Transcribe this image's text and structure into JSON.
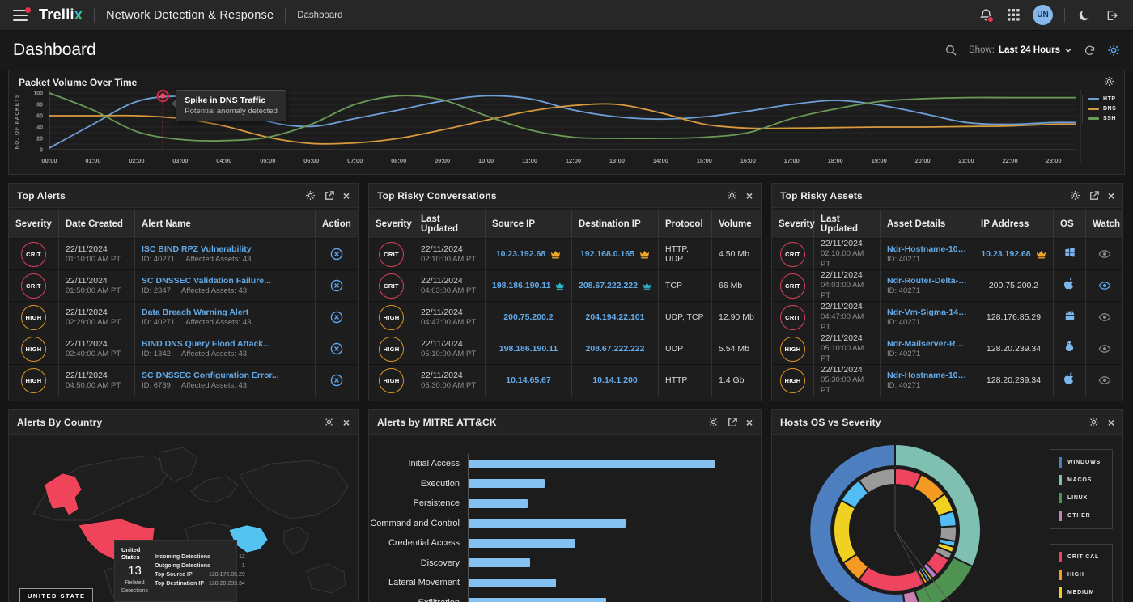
{
  "topbar": {
    "logo_main": "Trelli",
    "logo_x": "x",
    "product": "Network Detection & Response",
    "breadcrumb": "Dashboard",
    "avatar": "UN"
  },
  "header": {
    "title": "Dashboard",
    "show_label": "Show:",
    "show_value": "Last 24 Hours"
  },
  "colors": {
    "crit": "#d8405c",
    "high": "#d89427",
    "link": "#63aae8",
    "bar": "#85c1f0",
    "crown_orange": "#eda62a",
    "crown_teal": "#2fb6c9",
    "watch_active": "#5ba7f0",
    "watch_idle": "#8a8a8a",
    "os_icon": "#7db6ec"
  },
  "chart_data": [
    {
      "type": "line",
      "title": "Packet Volume Over Time",
      "xlabel": "",
      "ylabel": "NO. OF PACKETS",
      "ylim": [
        0,
        100
      ],
      "yticks": [
        0,
        20,
        40,
        60,
        80,
        100
      ],
      "grid": true,
      "legend_position": "right",
      "x": [
        "00:00",
        "01:00",
        "02:00",
        "03:00",
        "04:00",
        "05:00",
        "06:00",
        "07:00",
        "08:00",
        "09:00",
        "10:00",
        "11:00",
        "12:00",
        "13:00",
        "14:00",
        "15:00",
        "16:00",
        "17:00",
        "18:00",
        "19:00",
        "20:00",
        "21:00",
        "22:00",
        "23:00"
      ],
      "series": [
        {
          "name": "HTP",
          "color": "#6f9fd8",
          "values": [
            3,
            45,
            85,
            94,
            80,
            50,
            41,
            55,
            70,
            86,
            95,
            90,
            70,
            58,
            54,
            58,
            68,
            80,
            87,
            79,
            64,
            48,
            45,
            48
          ]
        },
        {
          "name": "DNS",
          "color": "#d89a3e",
          "values": [
            60,
            60,
            60,
            55,
            42,
            22,
            11,
            12,
            20,
            35,
            52,
            68,
            78,
            80,
            65,
            45,
            38,
            38,
            39,
            40,
            40,
            41,
            42,
            45
          ]
        },
        {
          "name": "SSH",
          "color": "#6a9a56",
          "values": [
            100,
            70,
            32,
            18,
            16,
            22,
            45,
            80,
            95,
            88,
            60,
            35,
            22,
            20,
            20,
            22,
            30,
            55,
            72,
            85,
            90,
            92,
            92,
            92
          ]
        }
      ],
      "annotation": {
        "x_hour": 2.6,
        "y": 95,
        "color": "#ef4860",
        "tooltip_title": "Spike in DNS Traffic",
        "tooltip_subtitle": "Potential anomaly detected"
      }
    },
    {
      "type": "bar",
      "orientation": "horizontal",
      "title": "Alerts by MITRE ATT&CK",
      "categories": [
        "Initial Access",
        "Execution",
        "Persistence",
        "Command and Control",
        "Credential Access",
        "Discovery",
        "Lateral Movement",
        "Exfiltration"
      ],
      "values": [
        88,
        27,
        21,
        56,
        38,
        22,
        31,
        49
      ],
      "xlim": [
        0,
        100
      ],
      "color": "#85c1f0"
    },
    {
      "type": "sunburst",
      "title": "Hosts OS vs Severity",
      "outer_ring": [
        {
          "label": "MACOS",
          "color": "#7fc0b2",
          "value": 32
        },
        {
          "label": "LINUX",
          "color": "#4f9352",
          "value": 13
        },
        {
          "label": "OTHER",
          "color": "#c77fb4",
          "value": 3
        },
        {
          "label": "WINDOWS",
          "color": "#4d7fc0",
          "value": 52
        }
      ],
      "inner_ring": [
        {
          "color": "#ef4460",
          "value": 7
        },
        {
          "color": "#f59b23",
          "value": 8
        },
        {
          "color": "#f0d020",
          "value": 5
        },
        {
          "color": "#52bdf5",
          "value": 4
        },
        {
          "color": "#9a9a9a",
          "value": 4
        },
        {
          "color": "#52bdf5",
          "value": 1.5
        },
        {
          "color": "#f0d020",
          "value": 1.5
        },
        {
          "color": "#9a9a9a",
          "value": 2
        },
        {
          "color": "#ef4460",
          "value": 5
        },
        {
          "color": "#b57fd6",
          "value": 1.5
        },
        {
          "color": "#f0d020",
          "value": 0.8
        },
        {
          "color": "#52bdf5",
          "value": 0.8
        },
        {
          "color": "#f59b23",
          "value": 0.9
        },
        {
          "color": "#ef4460",
          "value": 18
        },
        {
          "color": "#f59b23",
          "value": 6
        },
        {
          "color": "#f0d020",
          "value": 17
        },
        {
          "color": "#52bdf5",
          "value": 7
        },
        {
          "color": "#9a9a9a",
          "value": 10
        }
      ],
      "os_legend": [
        {
          "label": "WINDOWS",
          "color": "#4d7fc0"
        },
        {
          "label": "MACOS",
          "color": "#7fc0b2"
        },
        {
          "label": "LINUX",
          "color": "#4f9352"
        },
        {
          "label": "OTHER",
          "color": "#c77fb4"
        }
      ],
      "severity_legend": [
        {
          "label": "CRITICAL",
          "color": "#ef4460"
        },
        {
          "label": "HIGH",
          "color": "#f59b23"
        },
        {
          "label": "MEDIUM",
          "color": "#f0d020"
        },
        {
          "label": "LOW",
          "color": "#52bdf5"
        }
      ]
    }
  ],
  "panels": {
    "top_alerts": {
      "title": "Top Alerts",
      "columns": [
        "Severity",
        "Date Created",
        "Alert Name",
        "Action"
      ],
      "rows": [
        {
          "severity": "CRIT",
          "date": "22/11/2024",
          "time": "01:10:00 AM PT",
          "name": "ISC BIND RPZ Vulnerability",
          "id": "ID: 40271",
          "assets": "Affected Assets: 43"
        },
        {
          "severity": "CRIT",
          "date": "22/11/2024",
          "time": "01:50:00 AM PT",
          "name": "SC DNSSEC Validation Failure...",
          "id": "ID: 2347",
          "assets": "Affected Assets: 43"
        },
        {
          "severity": "HIGH",
          "date": "22/11/2024",
          "time": "02:29:00 AM PT",
          "name": "Data Breach Warning Alert",
          "id": "ID: 40271",
          "assets": "Affected Assets: 43"
        },
        {
          "severity": "HIGH",
          "date": "22/11/2024",
          "time": "02:40:00 AM PT",
          "name": "BIND DNS Query Flood Attack...",
          "id": "ID: 1342",
          "assets": "Affected Assets: 43"
        },
        {
          "severity": "HIGH",
          "date": "22/11/2024",
          "time": "04:50:00 AM PT",
          "name": "SC DNSSEC Configuration Error...",
          "id": "ID: 6739",
          "assets": "Affected Assets: 43"
        }
      ]
    },
    "top_risky_conversations": {
      "title": "Top Risky Conversations",
      "columns": [
        "Severity",
        "Last Updated",
        "Source IP",
        "Destination IP",
        "Protocol",
        "Volume"
      ],
      "rows": [
        {
          "severity": "CRIT",
          "date": "22/11/2024",
          "time": "02:10:00 AM PT",
          "src": "10.23.192.68",
          "src_crown": "orange",
          "dst": "192.168.0.165",
          "dst_crown": "orange",
          "protocol": "HTTP, UDP",
          "volume": "4.50 Mb"
        },
        {
          "severity": "CRIT",
          "date": "22/11/2024",
          "time": "04:03:00 AM PT",
          "src": "198.186.190.11",
          "src_crown": "teal",
          "dst": "208.67.222.222",
          "dst_crown": "teal",
          "protocol": "TCP",
          "volume": "66 Mb"
        },
        {
          "severity": "HIGH",
          "date": "22/11/2024",
          "time": "04:47:00 AM PT",
          "src": "200.75.200.2",
          "src_crown": null,
          "dst": "204.194.22.101",
          "dst_crown": null,
          "protocol": "UDP, TCP",
          "volume": "12.90 Mb"
        },
        {
          "severity": "HIGH",
          "date": "22/11/2024",
          "time": "05:10:00 AM PT",
          "src": "198.186.190.11",
          "src_crown": null,
          "dst": "208.67.222.222",
          "dst_crown": null,
          "protocol": "UDP",
          "volume": "5.54 Mb"
        },
        {
          "severity": "HIGH",
          "date": "22/11/2024",
          "time": "05:30:00 AM PT",
          "src": "10.14.65.67",
          "src_crown": null,
          "dst": "10.14.1.200",
          "dst_crown": null,
          "protocol": "HTTP",
          "volume": "1.4 Gb"
        }
      ]
    },
    "top_risky_assets": {
      "title": "Top Risky Assets",
      "columns": [
        "Severity",
        "Last Updated",
        "Asset Details",
        "IP Address",
        "OS",
        "Watch"
      ],
      "rows": [
        {
          "severity": "CRIT",
          "date": "22/11/2024",
          "time": "02:10:00 AM PT",
          "asset": "Ndr-Hostname-10.Au",
          "id": "ID: 40271",
          "ip": "10.23.192.68",
          "ip_crown": "orange",
          "os": "windows",
          "watch_active": false
        },
        {
          "severity": "CRIT",
          "date": "22/11/2024",
          "time": "04:03:00 AM PT",
          "asset": "Ndr-Router-Delta-04.A...",
          "id": "ID: 40271",
          "ip": "200.75.200.2",
          "ip_crown": null,
          "os": "apple",
          "watch_active": true
        },
        {
          "severity": "CRIT",
          "date": "22/11/2024",
          "time": "04:47:00 AM PT",
          "asset": "Ndr-Vm-Sigma-14.Au",
          "id": "ID: 40271",
          "ip": "128.176.85.29",
          "ip_crown": null,
          "os": "android",
          "watch_active": false
        },
        {
          "severity": "HIGH",
          "date": "22/11/2024",
          "time": "05:10:00 AM PT",
          "asset": "Ndr-Mailserver-Rho-19...",
          "id": "ID: 40271",
          "ip": "128.20.239.34",
          "ip_crown": null,
          "os": "linux",
          "watch_active": false
        },
        {
          "severity": "HIGH",
          "date": "22/11/2024",
          "time": "05:30:00 AM PT",
          "asset": "Ndr-Hostname-10.Au",
          "id": "ID: 40271",
          "ip": "128.20.239.34",
          "ip_crown": null,
          "os": "apple",
          "watch_active": false
        }
      ]
    },
    "alerts_by_country": {
      "title": "Alerts By Country",
      "country_badge": "UNITED STATE",
      "tooltip": {
        "country": "United States",
        "count": "13",
        "count_label": "Related Detections",
        "rows": [
          {
            "label": "Incoming Detections",
            "value": "12"
          },
          {
            "label": "Outgoing Detections",
            "value": "1"
          },
          {
            "label": "Top Source IP",
            "value": "128.176.85.29"
          },
          {
            "label": "Top Destination IP",
            "value": "128.20.239.34"
          }
        ]
      },
      "map_colors": {
        "primary": "#f0445a",
        "secondary": "#55c3f0",
        "tertiary": "#f0c419"
      }
    },
    "mitre": {
      "title": "Alerts by MITRE ATT&CK"
    },
    "hosts_os": {
      "title": "Hosts OS vs Severity"
    },
    "packet_volume": {
      "title": "Packet Volume Over Time"
    }
  }
}
